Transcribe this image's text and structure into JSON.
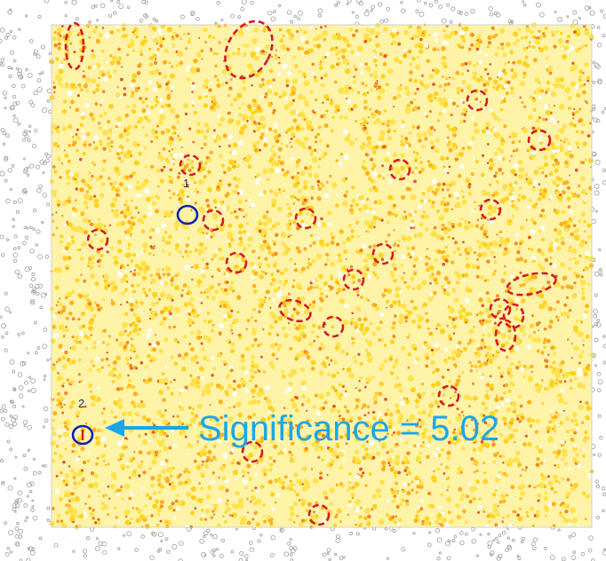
{
  "image": {
    "background_color": "#ffffff",
    "noise_color": "#a8a8a8",
    "field_colors": [
      "#ffe24a",
      "#ffd21f",
      "#ffb01a",
      "#f58a1e",
      "#e45a25",
      "#ffffff"
    ]
  },
  "annotations": {
    "dashed_color": "#d7191c",
    "solid_color": "#1020b4",
    "arrow_color": "#1aa7e6",
    "candidate_1_label": "1",
    "candidate_2_label": "2",
    "significance_text": "Significance = 5.02"
  }
}
